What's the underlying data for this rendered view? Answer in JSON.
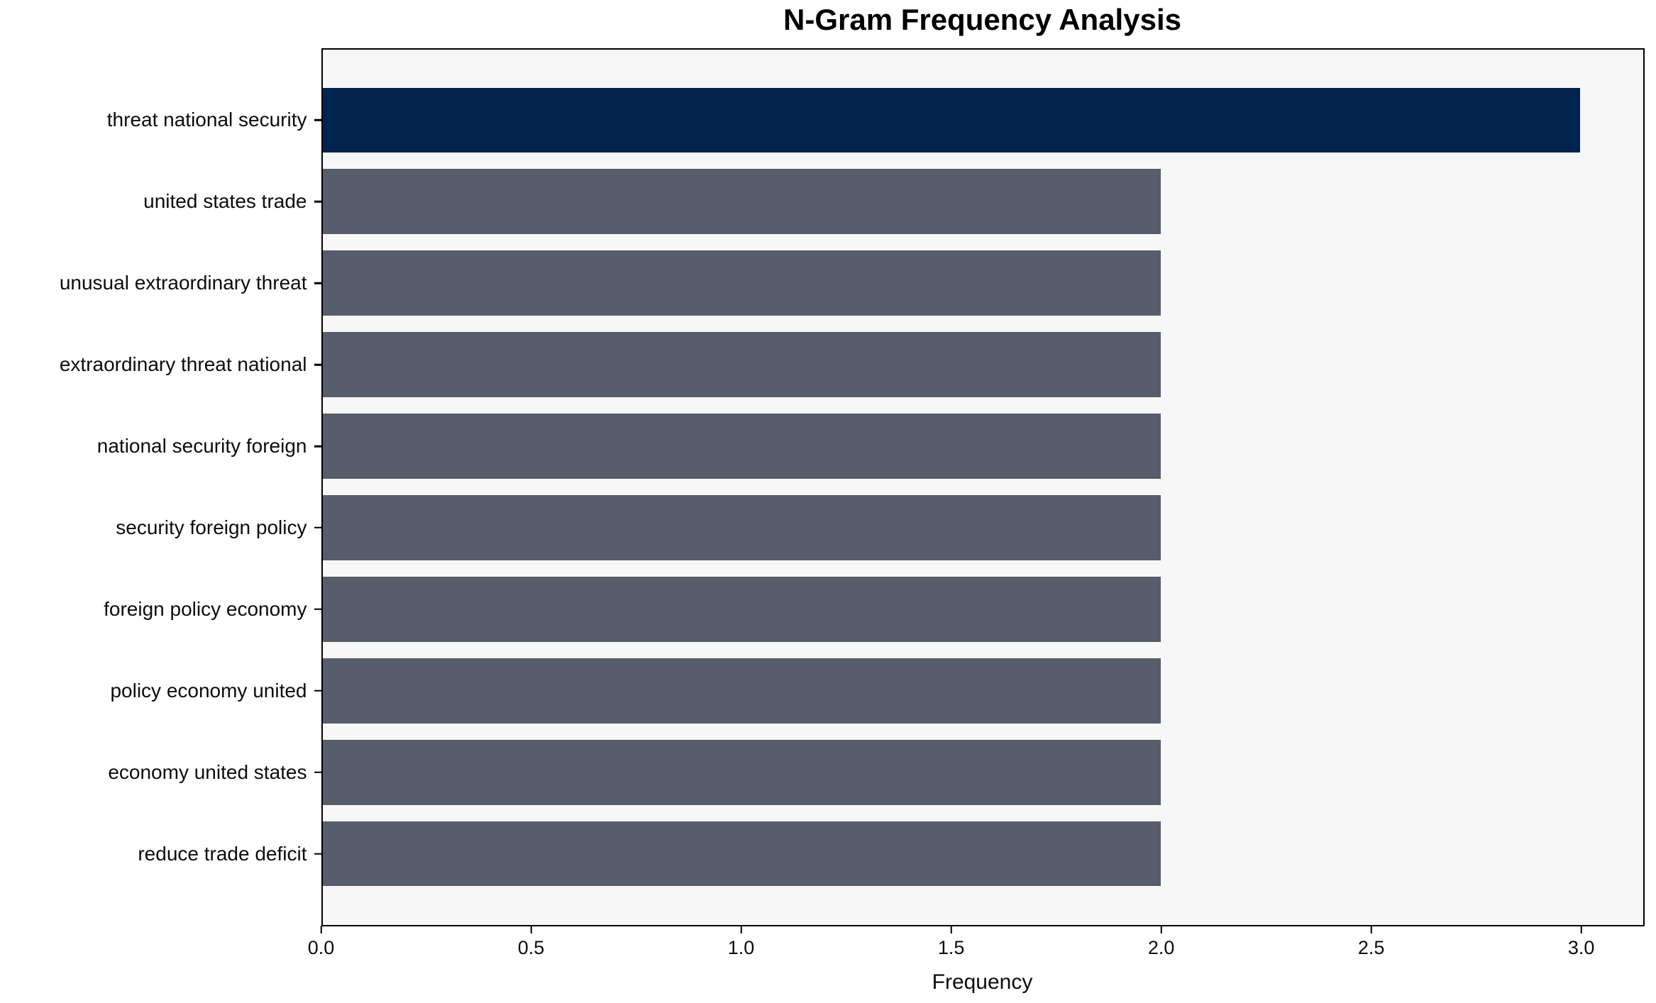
{
  "chart_data": {
    "type": "bar",
    "orientation": "horizontal",
    "title": "N-Gram Frequency Analysis",
    "xlabel": "Frequency",
    "ylabel": "",
    "categories": [
      "threat national security",
      "united states trade",
      "unusual extraordinary threat",
      "extraordinary threat national",
      "national security foreign",
      "security foreign policy",
      "foreign policy economy",
      "policy economy united",
      "economy united states",
      "reduce trade deficit"
    ],
    "values": [
      3,
      2,
      2,
      2,
      2,
      2,
      2,
      2,
      2,
      2
    ],
    "bar_colors": [
      "#03234f",
      "#575d6b",
      "#575d6b",
      "#575d6b",
      "#575d6b",
      "#575d6b",
      "#575d6b",
      "#575d6b",
      "#575d6b",
      "#575d6b"
    ],
    "highlight_color": "#03234f",
    "base_color": "#575d6b",
    "xlim": [
      0,
      3.15
    ],
    "xticks": [
      0.0,
      0.5,
      1.0,
      1.5,
      2.0,
      2.5,
      3.0
    ],
    "xtick_labels": [
      "0.0",
      "0.5",
      "1.0",
      "1.5",
      "2.0",
      "2.5",
      "3.0"
    ],
    "grid": false,
    "legend": "none",
    "plot_bg": "#f7f7f8",
    "figure_bg": "#ffffff",
    "spine_color": "#000000"
  }
}
